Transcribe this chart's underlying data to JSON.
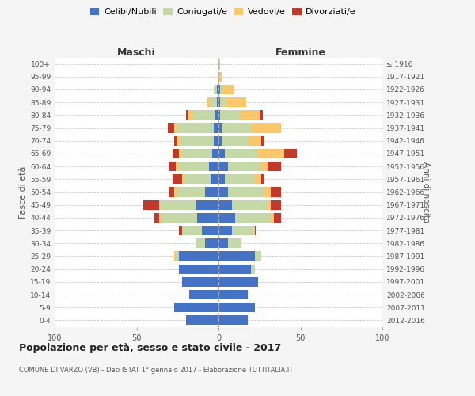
{
  "age_groups": [
    "0-4",
    "5-9",
    "10-14",
    "15-19",
    "20-24",
    "25-29",
    "30-34",
    "35-39",
    "40-44",
    "45-49",
    "50-54",
    "55-59",
    "60-64",
    "65-69",
    "70-74",
    "75-79",
    "80-84",
    "85-89",
    "90-94",
    "95-99",
    "100+"
  ],
  "birth_years": [
    "2012-2016",
    "2007-2011",
    "2002-2006",
    "1997-2001",
    "1992-1996",
    "1987-1991",
    "1982-1986",
    "1977-1981",
    "1972-1976",
    "1967-1971",
    "1962-1966",
    "1957-1961",
    "1952-1956",
    "1947-1951",
    "1942-1946",
    "1937-1941",
    "1932-1936",
    "1927-1931",
    "1922-1926",
    "1917-1921",
    "≤ 1916"
  ],
  "male": {
    "celibi": [
      20,
      27,
      18,
      22,
      24,
      24,
      8,
      10,
      13,
      14,
      8,
      5,
      6,
      4,
      3,
      3,
      2,
      1,
      1,
      0,
      0
    ],
    "coniugati": [
      0,
      0,
      0,
      0,
      0,
      2,
      6,
      12,
      22,
      22,
      17,
      16,
      18,
      18,
      20,
      22,
      14,
      4,
      2,
      0,
      0
    ],
    "vedovi": [
      0,
      0,
      0,
      0,
      0,
      1,
      0,
      0,
      1,
      0,
      2,
      1,
      2,
      2,
      2,
      2,
      3,
      2,
      0,
      0,
      0
    ],
    "divorziati": [
      0,
      0,
      0,
      0,
      0,
      0,
      0,
      2,
      3,
      10,
      3,
      6,
      4,
      4,
      2,
      4,
      1,
      0,
      0,
      0,
      0
    ]
  },
  "female": {
    "nubili": [
      18,
      22,
      18,
      24,
      20,
      22,
      6,
      8,
      10,
      8,
      6,
      4,
      6,
      4,
      2,
      2,
      1,
      1,
      1,
      0,
      0
    ],
    "coniugate": [
      0,
      0,
      0,
      0,
      2,
      4,
      8,
      14,
      22,
      22,
      22,
      18,
      20,
      20,
      16,
      18,
      12,
      4,
      2,
      0,
      0
    ],
    "vedove": [
      0,
      0,
      0,
      0,
      0,
      0,
      0,
      0,
      2,
      2,
      4,
      4,
      4,
      16,
      8,
      18,
      12,
      12,
      6,
      2,
      1
    ],
    "divorziate": [
      0,
      0,
      0,
      0,
      0,
      0,
      0,
      1,
      4,
      6,
      6,
      2,
      8,
      8,
      2,
      0,
      2,
      0,
      0,
      0,
      0
    ]
  },
  "colors": {
    "celibi": "#4472C4",
    "coniugati": "#C5D9A8",
    "vedovi": "#FAC76A",
    "divorziati": "#C0392B"
  },
  "title": "Popolazione per età, sesso e stato civile - 2017",
  "subtitle": "COMUNE DI VARZO (VB) - Dati ISTAT 1° gennaio 2017 - Elaborazione TUTTITALIA.IT",
  "xlabel_left": "Maschi",
  "xlabel_right": "Femmine",
  "ylabel_left": "Fasce di età",
  "ylabel_right": "Anni di nascita",
  "xlim": 100,
  "legend_labels": [
    "Celibi/Nubili",
    "Coniugati/e",
    "Vedovi/e",
    "Divorziati/e"
  ],
  "background_color": "#f5f5f5",
  "plot_bg_color": "#ffffff"
}
